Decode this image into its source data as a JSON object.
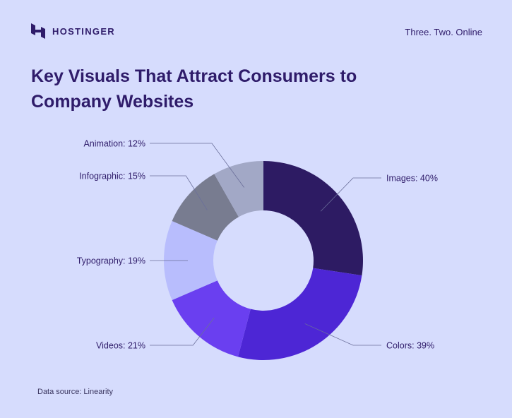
{
  "header": {
    "brand_name": "HOSTINGER",
    "logo_icon": "hostinger-logo-icon",
    "tagline": "Three. Two. Online"
  },
  "chart_data": {
    "type": "pie",
    "title_lines": [
      "Key Visuals That Attract Consumers to",
      "Company Websites"
    ],
    "donut": true,
    "categories": [
      "Images",
      "Colors",
      "Videos",
      "Typography",
      "Infographic",
      "Animation"
    ],
    "values": [
      40,
      39,
      21,
      19,
      15,
      12
    ],
    "labels": [
      "Images: 40%",
      "Colors: 39%",
      "Videos: 21%",
      "Typography: 19%",
      "Infographic: 15%",
      "Animation: 12%"
    ],
    "colors": [
      "#2d1b63",
      "#4d26d5",
      "#6a3ff0",
      "#b8bdfd",
      "#787c90",
      "#a2a8c6"
    ],
    "label_side": [
      "right",
      "right",
      "left",
      "left",
      "left",
      "left"
    ],
    "source": "Data source: Linearity"
  }
}
